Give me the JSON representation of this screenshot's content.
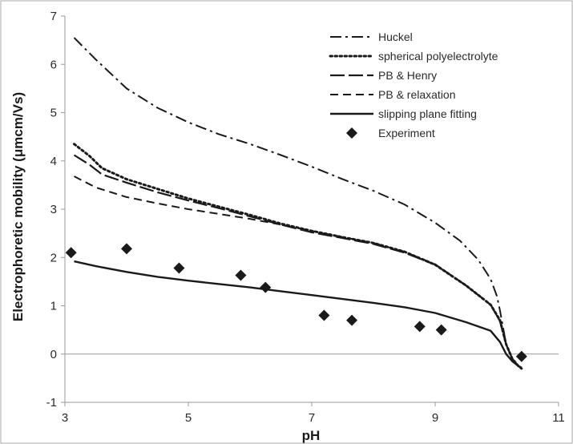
{
  "chart_data": {
    "type": "line",
    "title": "",
    "xlabel": "pH",
    "ylabel": "Electrophoretic mobility (μmcm/Vs)",
    "xlim": [
      3,
      11
    ],
    "ylim": [
      -1,
      7
    ],
    "xticks": [
      "3",
      "5",
      "7",
      "9",
      "11"
    ],
    "yticks": [
      "-1",
      "0",
      "1",
      "2",
      "3",
      "4",
      "5",
      "6",
      "7"
    ],
    "grid": false,
    "zero_line": true,
    "legend_position": "top-right",
    "series": [
      {
        "name": "Huckel",
        "style": "dash-dot",
        "x": [
          3.15,
          3.5,
          4.0,
          4.5,
          5.0,
          5.5,
          6.0,
          6.5,
          7.0,
          7.5,
          8.0,
          8.5,
          9.0,
          9.4,
          9.7,
          9.9,
          10.0,
          10.05,
          10.1,
          10.15,
          10.25,
          10.35,
          10.4
        ],
        "y": [
          6.55,
          6.1,
          5.5,
          5.1,
          4.8,
          4.55,
          4.35,
          4.12,
          3.88,
          3.62,
          3.38,
          3.1,
          2.72,
          2.35,
          1.95,
          1.55,
          1.2,
          0.9,
          0.55,
          0.2,
          -0.1,
          -0.25,
          -0.3
        ]
      },
      {
        "name": "spherical polyelectrolyte",
        "style": "dotted",
        "x": [
          3.15,
          3.4,
          3.6,
          4.0,
          4.5,
          5.0,
          5.5,
          6.0,
          6.5,
          7.0,
          7.5,
          8.0,
          8.5,
          9.0,
          9.5,
          9.9,
          10.05,
          10.15,
          10.25,
          10.35,
          10.4
        ],
        "y": [
          4.35,
          4.1,
          3.85,
          3.62,
          3.42,
          3.22,
          3.05,
          2.88,
          2.7,
          2.55,
          2.42,
          2.3,
          2.12,
          1.85,
          1.42,
          1.02,
          0.7,
          0.2,
          -0.1,
          -0.25,
          -0.3
        ]
      },
      {
        "name": "PB & Henry",
        "style": "long-dash",
        "x": [
          3.15,
          3.4,
          3.6,
          4.0,
          4.5,
          5.0,
          5.5,
          6.0,
          6.5,
          7.0,
          7.5,
          8.0,
          8.5,
          9.0,
          9.5,
          9.9,
          10.05,
          10.15,
          10.25,
          10.35,
          10.4
        ],
        "y": [
          4.12,
          3.92,
          3.72,
          3.55,
          3.35,
          3.18,
          3.02,
          2.85,
          2.68,
          2.52,
          2.4,
          2.28,
          2.1,
          1.85,
          1.42,
          1.02,
          0.68,
          0.2,
          -0.1,
          -0.25,
          -0.3
        ]
      },
      {
        "name": "PB & relaxation",
        "style": "dashed",
        "x": [
          3.15,
          3.5,
          4.0,
          4.5,
          5.0,
          5.5,
          6.0,
          6.5,
          7.0,
          7.5,
          8.0,
          8.5,
          9.0,
          9.5,
          9.9,
          10.05,
          10.15,
          10.25,
          10.35,
          10.4
        ],
        "y": [
          3.68,
          3.45,
          3.25,
          3.12,
          3.0,
          2.9,
          2.8,
          2.68,
          2.55,
          2.42,
          2.3,
          2.12,
          1.86,
          1.42,
          1.02,
          0.68,
          0.2,
          -0.1,
          -0.25,
          -0.3
        ]
      },
      {
        "name": "slipping plane fitting",
        "style": "solid",
        "x": [
          3.15,
          3.5,
          4.0,
          4.5,
          5.0,
          5.5,
          6.0,
          6.5,
          7.0,
          7.5,
          8.0,
          8.5,
          9.0,
          9.5,
          9.9,
          10.05,
          10.15,
          10.25,
          10.35,
          10.4
        ],
        "y": [
          1.92,
          1.82,
          1.7,
          1.6,
          1.52,
          1.45,
          1.38,
          1.3,
          1.22,
          1.14,
          1.06,
          0.97,
          0.85,
          0.66,
          0.48,
          0.25,
          0.0,
          -0.15,
          -0.25,
          -0.28
        ]
      },
      {
        "name": "Experiment",
        "style": "markers",
        "x": [
          3.1,
          4.0,
          4.85,
          5.85,
          6.25,
          7.2,
          7.65,
          8.75,
          9.1,
          10.4
        ],
        "y": [
          2.1,
          2.18,
          1.78,
          1.63,
          1.38,
          0.8,
          0.7,
          0.57,
          0.5,
          -0.05
        ]
      }
    ]
  },
  "colors": {
    "line": "#1a1a1a",
    "axis": "#9a9a9a",
    "border": "#a8a8a8",
    "background": "#ffffff"
  }
}
